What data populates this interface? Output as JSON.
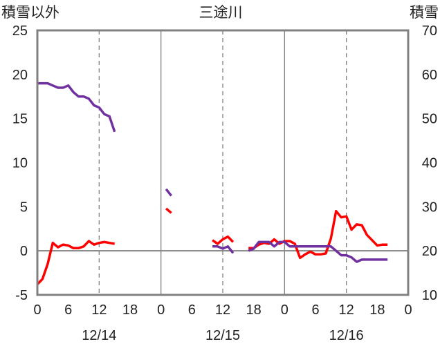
{
  "chart_data": {
    "type": "line",
    "title": "三途川",
    "y_left_label": "積雪以外",
    "y_right_label": "積雪",
    "y_left_range": [
      -5,
      25
    ],
    "y_left_ticks": [
      "-5",
      "0",
      "5",
      "10",
      "15",
      "20",
      "25"
    ],
    "y_right_range": [
      10,
      70
    ],
    "y_right_ticks": [
      "10",
      "20",
      "30",
      "40",
      "50",
      "60",
      "70"
    ],
    "x_range_hours": [
      0,
      72
    ],
    "x_tick_labels": [
      "0",
      "6",
      "12",
      "18",
      "0",
      "6",
      "12",
      "18",
      "0",
      "6",
      "12",
      "18",
      "0"
    ],
    "date_labels": [
      {
        "label": "12/14",
        "hour": 12
      },
      {
        "label": "12/15",
        "hour": 36
      },
      {
        "label": "12/16",
        "hour": 60
      }
    ],
    "day_boundaries_hours": [
      24,
      48
    ],
    "noon_lines_hours": [
      12,
      36,
      60
    ],
    "colors": {
      "temperature": "#ff0000",
      "snow_depth": "#7030a0",
      "frame": "#808080",
      "zero_line": "#808080"
    },
    "series": [
      {
        "axis": "left",
        "color": "#ff0000",
        "segments": [
          [
            [
              0,
              -3.8
            ],
            [
              1,
              -3.2
            ],
            [
              2,
              -1.5
            ],
            [
              3,
              0.9
            ],
            [
              4,
              0.4
            ],
            [
              5,
              0.7
            ],
            [
              6,
              0.6
            ],
            [
              7,
              0.3
            ],
            [
              8,
              0.3
            ],
            [
              9,
              0.5
            ],
            [
              10,
              1.1
            ],
            [
              11,
              0.7
            ],
            [
              12,
              0.9
            ],
            [
              13,
              1.0
            ],
            [
              14,
              0.9
            ],
            [
              15,
              0.8
            ]
          ],
          [
            [
              25,
              4.8
            ],
            [
              26,
              4.3
            ]
          ],
          [
            [
              34,
              1.2
            ],
            [
              35,
              0.8
            ],
            [
              36,
              1.3
            ],
            [
              37,
              1.6
            ],
            [
              38,
              1.0
            ]
          ],
          [
            [
              41,
              0.3
            ],
            [
              42,
              0.3
            ],
            [
              43,
              0.7
            ],
            [
              44,
              0.9
            ],
            [
              45,
              0.8
            ],
            [
              46,
              1.3
            ],
            [
              47,
              0.8
            ],
            [
              48,
              1.1
            ],
            [
              49,
              1.1
            ],
            [
              50,
              0.8
            ],
            [
              51,
              -0.8
            ],
            [
              52,
              -0.4
            ],
            [
              53,
              -0.1
            ],
            [
              54,
              -0.4
            ],
            [
              55,
              -0.4
            ],
            [
              56,
              -0.3
            ],
            [
              57,
              1.4
            ],
            [
              58,
              4.5
            ],
            [
              59,
              3.8
            ],
            [
              60,
              3.9
            ],
            [
              61,
              2.4
            ],
            [
              62,
              3.0
            ],
            [
              63,
              2.9
            ],
            [
              64,
              1.8
            ],
            [
              65,
              1.2
            ],
            [
              66,
              0.6
            ],
            [
              67,
              0.7
            ],
            [
              68,
              0.7
            ]
          ]
        ]
      },
      {
        "axis": "right",
        "color": "#7030a0",
        "segments": [
          [
            [
              0,
              58
            ],
            [
              1,
              58
            ],
            [
              2,
              58
            ],
            [
              3,
              57.5
            ],
            [
              4,
              57
            ],
            [
              5,
              57
            ],
            [
              6,
              57.5
            ],
            [
              7,
              56
            ],
            [
              8,
              55
            ],
            [
              9,
              55
            ],
            [
              10,
              54.5
            ],
            [
              11,
              53
            ],
            [
              12,
              52.5
            ],
            [
              13,
              51
            ],
            [
              14,
              50.5
            ],
            [
              15,
              47
            ]
          ],
          [
            [
              25,
              34
            ],
            [
              26,
              32.5
            ]
          ],
          [
            [
              34,
              21
            ],
            [
              35,
              21
            ],
            [
              36,
              20.5
            ],
            [
              37,
              21
            ],
            [
              38,
              19.5
            ]
          ],
          [
            [
              41,
              20
            ],
            [
              42,
              20.5
            ],
            [
              43,
              22
            ],
            [
              44,
              22
            ],
            [
              45,
              22
            ],
            [
              46,
              21
            ],
            [
              47,
              22
            ],
            [
              48,
              22
            ],
            [
              49,
              21
            ],
            [
              50,
              21
            ],
            [
              51,
              21
            ],
            [
              52,
              21
            ],
            [
              53,
              21
            ],
            [
              54,
              21
            ],
            [
              55,
              21
            ],
            [
              56,
              21
            ],
            [
              57,
              21
            ],
            [
              58,
              20
            ],
            [
              59,
              19
            ],
            [
              60,
              19
            ],
            [
              61,
              18.5
            ],
            [
              62,
              17.5
            ],
            [
              63,
              18
            ],
            [
              64,
              18
            ],
            [
              65,
              18
            ],
            [
              66,
              18
            ],
            [
              67,
              18
            ],
            [
              68,
              18
            ]
          ]
        ]
      }
    ]
  }
}
